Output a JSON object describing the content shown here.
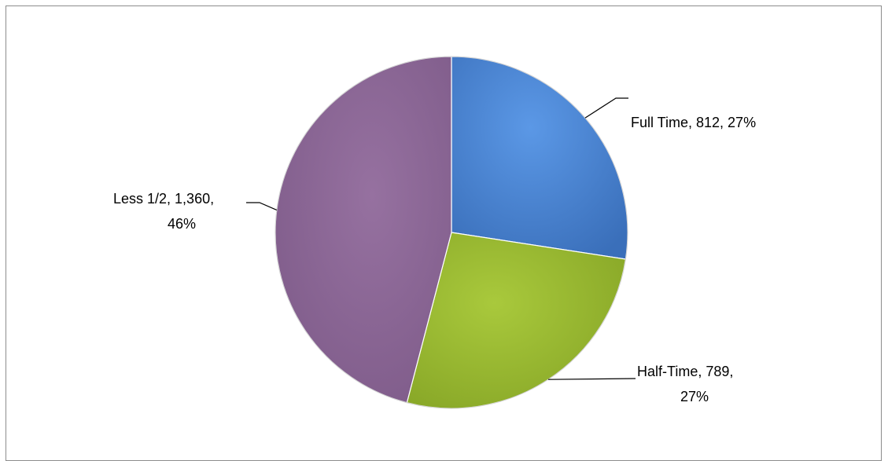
{
  "chart_data": {
    "type": "pie",
    "title": "",
    "categories": [
      "Full Time",
      "Half-Time",
      "Less 1/2"
    ],
    "values": [
      812,
      789,
      1360
    ],
    "percent_labels": [
      "27%",
      "27%",
      "46%"
    ],
    "value_labels": [
      "812",
      "789",
      "1,360"
    ],
    "colors": [
      "#4a86d6",
      "#97b82e",
      "#8a6494"
    ],
    "labels": {
      "full_time_line1": "Full Time, 812, 27%",
      "half_time_line1": "Half-Time, 789,",
      "half_time_line2": "27%",
      "less_half_line1": "Less 1/2, 1,360,",
      "less_half_line2": "46%"
    },
    "legend": "none",
    "grid": false
  }
}
